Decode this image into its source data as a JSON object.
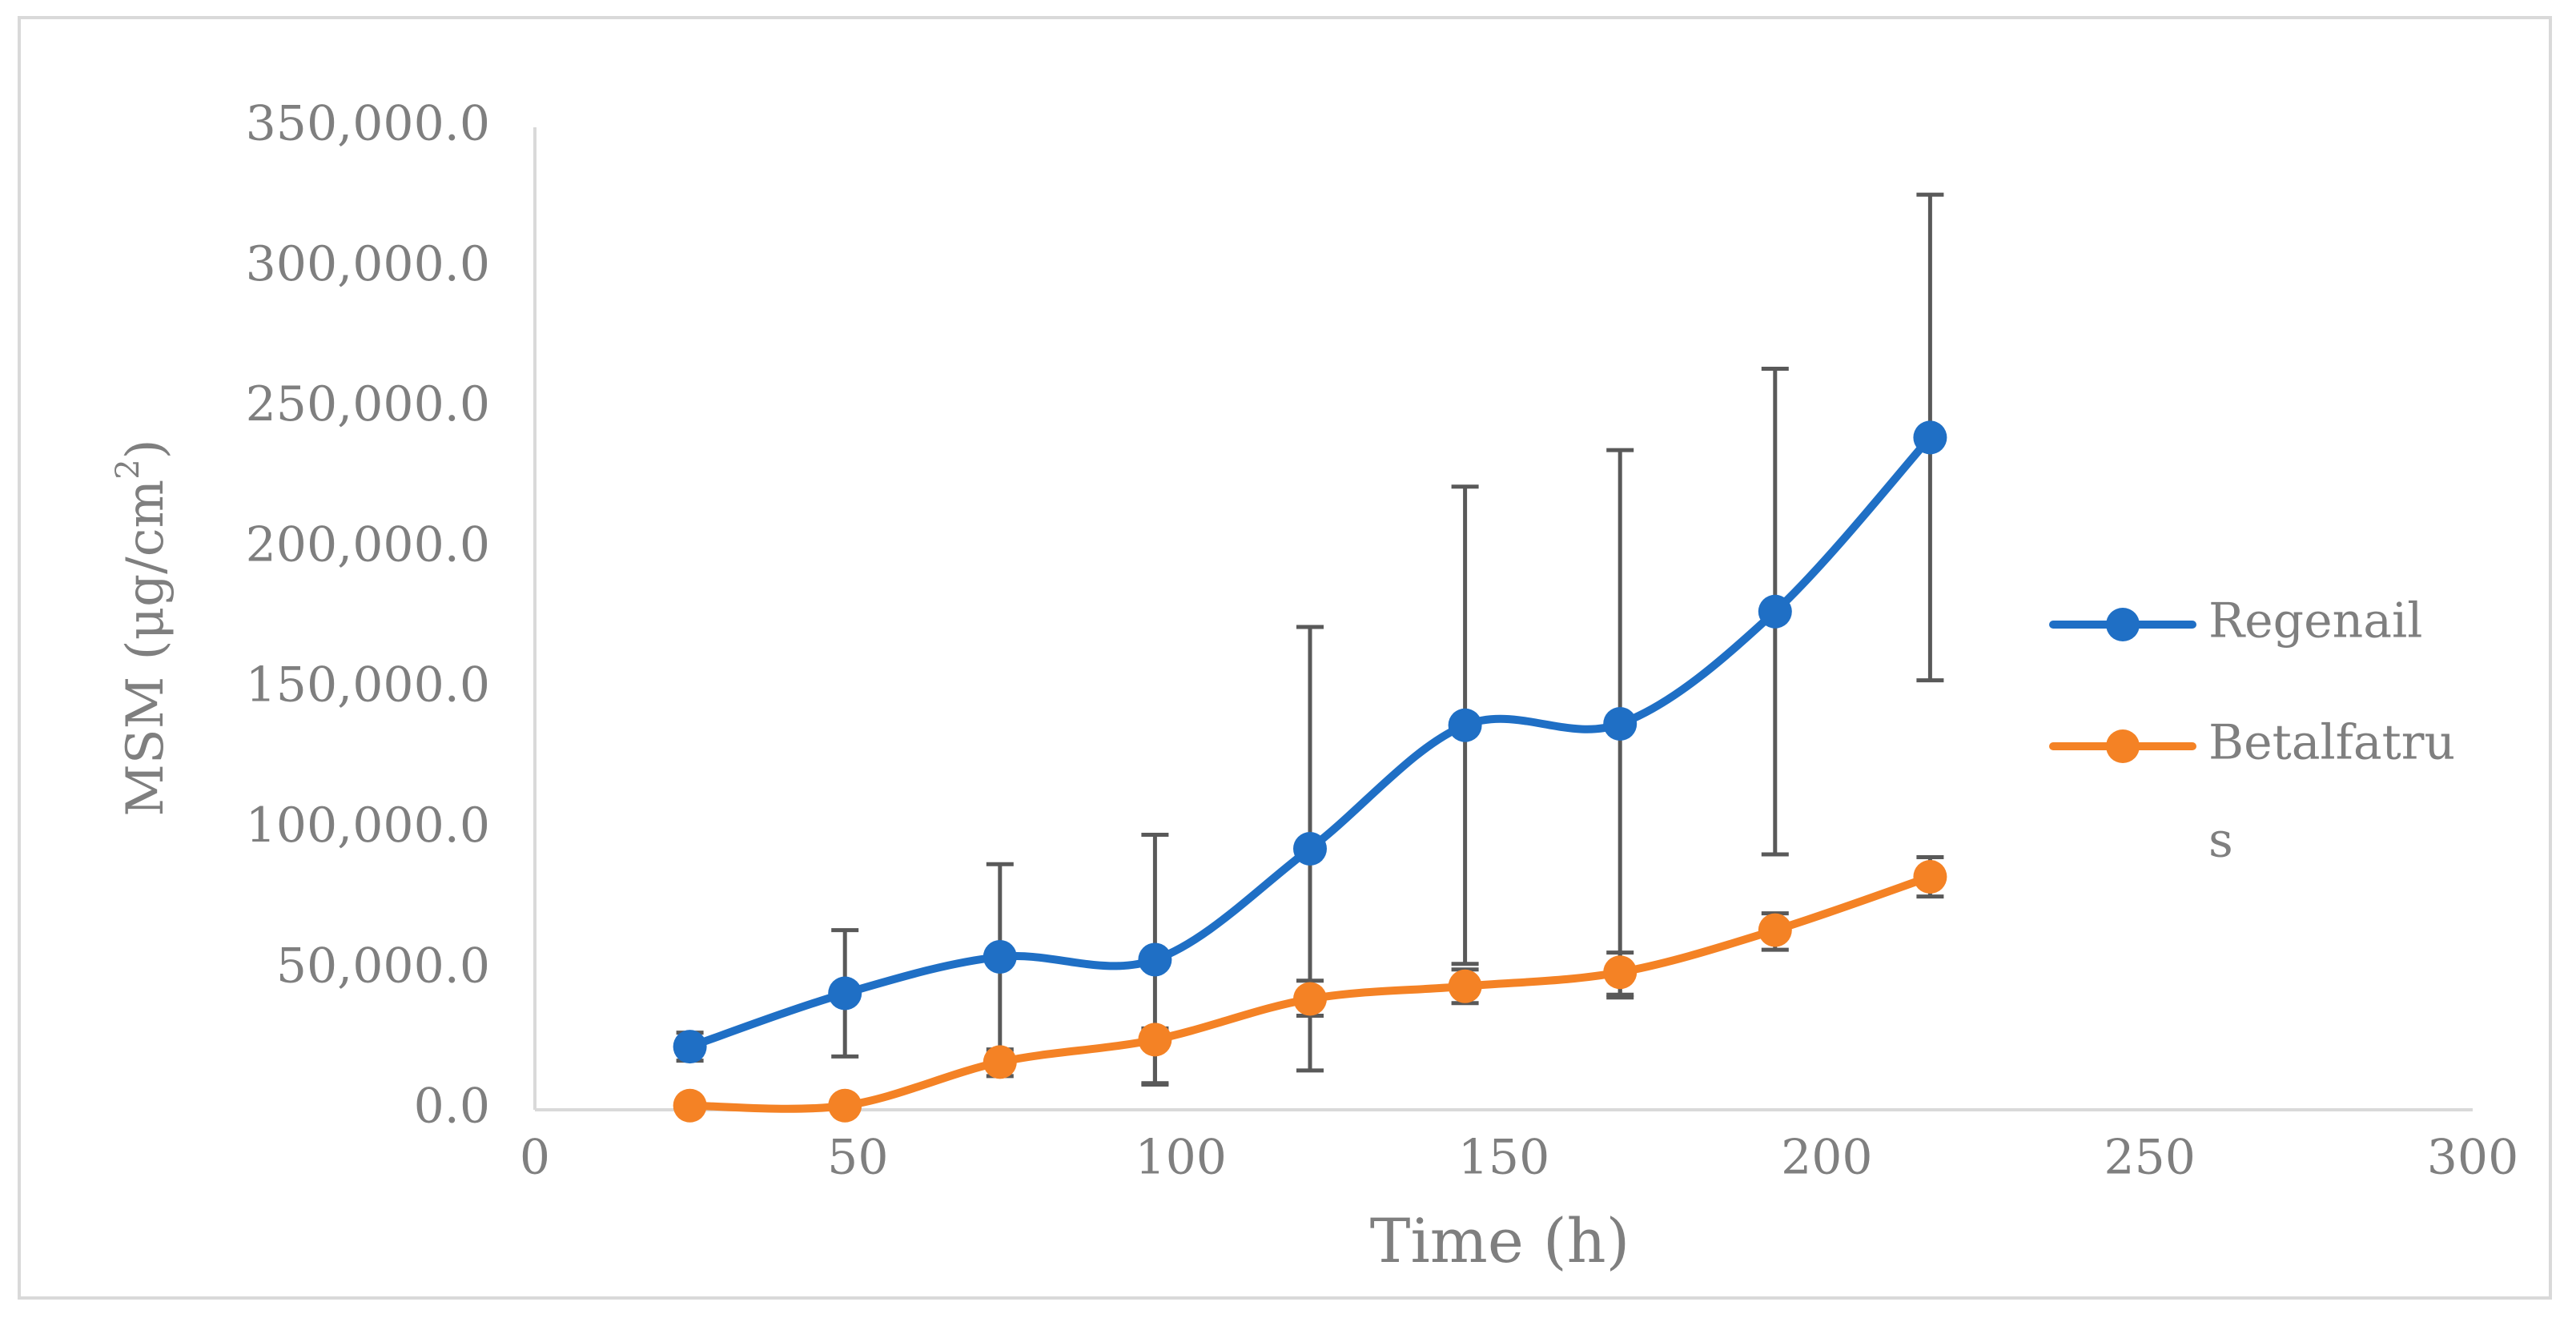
{
  "chart_data": {
    "type": "line",
    "smooth": true,
    "xlabel": "Time (h)",
    "ylabel_prefix": "MSM (μg/cm",
    "ylabel_sup": "2",
    "ylabel_suffix": ")",
    "xlim": [
      0,
      300
    ],
    "ylim": [
      0,
      350000
    ],
    "x_ticks": [
      0,
      50,
      100,
      150,
      200,
      250,
      300
    ],
    "x_tick_labels": [
      "0",
      "50",
      "100",
      "150",
      "200",
      "250",
      "300"
    ],
    "y_ticks": [
      0,
      50000,
      100000,
      150000,
      200000,
      250000,
      300000,
      350000
    ],
    "y_tick_labels": [
      "0.0",
      "50,000.0",
      "100,000.0",
      "150,000.0",
      "200,000.0",
      "250,000.0",
      "300,000.0",
      "350,000.0"
    ],
    "grid": false,
    "legend_position": "right",
    "x": [
      24,
      48,
      72,
      96,
      120,
      144,
      168,
      192,
      216
    ],
    "series": [
      {
        "name": "Regenail",
        "legend_label_lines": [
          "Regenail"
        ],
        "color": "#1f6fc5",
        "values": [
          22500,
          41500,
          54500,
          53500,
          93000,
          137000,
          137500,
          177500,
          239500
        ],
        "error_upper": [
          27500,
          64000,
          87500,
          98000,
          172000,
          222000,
          235000,
          264000,
          326000
        ],
        "error_lower": [
          17500,
          19000,
          21500,
          9500,
          14000,
          52000,
          40000,
          91000,
          153000
        ]
      },
      {
        "name": "Betalfatrus",
        "legend_label_lines": [
          "Betalfatru",
          "s"
        ],
        "color": "#f48225",
        "values": [
          1500,
          1500,
          17000,
          25000,
          39500,
          44000,
          49000,
          64000,
          83000
        ],
        "error_upper": [
          1500,
          1500,
          20000,
          29000,
          46000,
          50000,
          56000,
          70000,
          90000
        ],
        "error_lower": [
          1500,
          1500,
          12000,
          9000,
          33500,
          38000,
          41000,
          57000,
          76000
        ]
      }
    ]
  }
}
